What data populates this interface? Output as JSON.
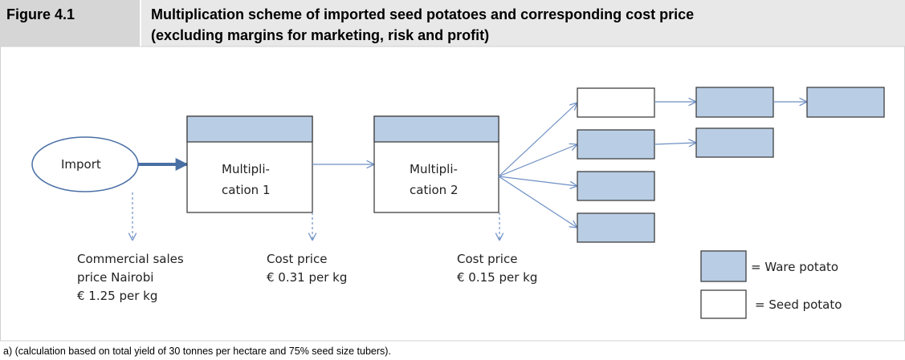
{
  "header": {
    "label": "Figure 4.1",
    "title": [
      "Multiplication scheme of imported seed potatoes and corresponding cost price",
      "(excluding margins for marketing, risk and profit)"
    ]
  },
  "nodes": [
    {
      "label": [
        "Import"
      ]
    },
    {
      "label": [
        "Multipli-",
        "cation 1"
      ]
    },
    {
      "label": [
        "Multipli-",
        "cation 2"
      ]
    }
  ],
  "annotations": [
    [
      "Commercial sales",
      "price Nairobi",
      "€ 1.25 per kg"
    ],
    [
      "Cost price",
      "€ 0.31 per kg"
    ],
    [
      "Cost price",
      "€ 0.15 per kg"
    ]
  ],
  "legend": [
    "= Ware potato",
    "= Seed potato"
  ],
  "footnote": "a) (calculation based on total yield of 30 tonnes per hectare and 75% seed size tubers)."
}
